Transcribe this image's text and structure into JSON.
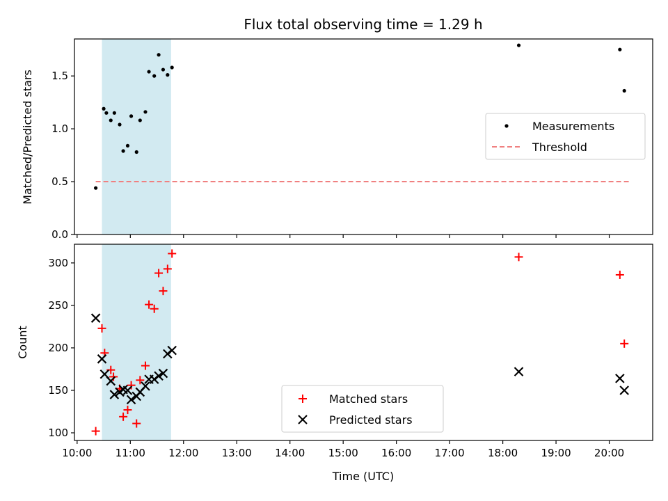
{
  "chart_data": [
    {
      "type": "scatter",
      "title": "Flux total observing time = 1.29 h",
      "xlabel": "",
      "ylabel": "Matched/Predicted stars",
      "x_axis": "time",
      "ylim": [
        0,
        1.85
      ],
      "yticks": [
        "0.0",
        "0.5",
        "1.0",
        "1.5"
      ],
      "shaded_span": {
        "start": "10:28",
        "end": "11:46",
        "color": "#add8e6"
      },
      "legend": {
        "position": "center-right",
        "entries": [
          "Measurements",
          "Threshold"
        ]
      },
      "series": [
        {
          "name": "Measurements",
          "marker": "dot",
          "color": "#000000",
          "points": [
            [
              "10:21",
              0.44
            ],
            [
              "10:30",
              1.19
            ],
            [
              "10:33",
              1.15
            ],
            [
              "10:38",
              1.08
            ],
            [
              "10:42",
              1.15
            ],
            [
              "10:48",
              1.04
            ],
            [
              "10:52",
              0.79
            ],
            [
              "10:57",
              0.84
            ],
            [
              "11:01",
              1.12
            ],
            [
              "11:07",
              0.78
            ],
            [
              "11:11",
              1.08
            ],
            [
              "11:17",
              1.16
            ],
            [
              "11:21",
              1.54
            ],
            [
              "11:27",
              1.5
            ],
            [
              "11:32",
              1.7
            ],
            [
              "11:37",
              1.56
            ],
            [
              "11:42",
              1.51
            ],
            [
              "11:47",
              1.58
            ],
            [
              "18:18",
              1.79
            ],
            [
              "20:12",
              1.75
            ],
            [
              "20:17",
              1.36
            ]
          ]
        },
        {
          "name": "Threshold",
          "style": "dashed",
          "color": "#f08080",
          "points": [
            [
              "10:21",
              0.5
            ],
            [
              "20:22",
              0.5
            ]
          ]
        }
      ]
    },
    {
      "type": "scatter",
      "title": "",
      "xlabel": "Time (UTC)",
      "ylabel": "Count",
      "x_axis": "time",
      "xlim": [
        "09:57",
        "20:49"
      ],
      "xticks": [
        "10:00",
        "11:00",
        "12:00",
        "13:00",
        "14:00",
        "15:00",
        "16:00",
        "17:00",
        "18:00",
        "19:00",
        "20:00"
      ],
      "ylim": [
        91,
        322
      ],
      "yticks": [
        "100",
        "150",
        "200",
        "250",
        "300"
      ],
      "shaded_span": {
        "start": "10:28",
        "end": "11:46",
        "color": "#add8e6"
      },
      "legend": {
        "position": "bottom-center",
        "entries": [
          "Matched stars",
          "Predicted stars"
        ]
      },
      "series": [
        {
          "name": "Matched stars",
          "marker": "plus",
          "color": "#ff0000",
          "points": [
            [
              "10:21",
              102
            ],
            [
              "10:28",
              223
            ],
            [
              "10:31",
              194
            ],
            [
              "10:38",
              174
            ],
            [
              "10:41",
              166
            ],
            [
              "10:48",
              152
            ],
            [
              "10:52",
              119
            ],
            [
              "10:57",
              127
            ],
            [
              "11:01",
              156
            ],
            [
              "11:07",
              111
            ],
            [
              "11:11",
              162
            ],
            [
              "11:17",
              179
            ],
            [
              "11:21",
              251
            ],
            [
              "11:27",
              246
            ],
            [
              "11:32",
              288
            ],
            [
              "11:37",
              267
            ],
            [
              "11:42",
              293
            ],
            [
              "11:47",
              311
            ],
            [
              "18:18",
              307
            ],
            [
              "20:12",
              286
            ],
            [
              "20:17",
              205
            ]
          ]
        },
        {
          "name": "Predicted stars",
          "marker": "x",
          "color": "#000000",
          "points": [
            [
              "10:21",
              235
            ],
            [
              "10:28",
              187
            ],
            [
              "10:31",
              169
            ],
            [
              "10:38",
              161
            ],
            [
              "10:42",
              145
            ],
            [
              "10:48",
              148
            ],
            [
              "10:52",
              151
            ],
            [
              "10:57",
              150
            ],
            [
              "11:01",
              139
            ],
            [
              "11:07",
              143
            ],
            [
              "11:11",
              148
            ],
            [
              "11:17",
              155
            ],
            [
              "11:21",
              163
            ],
            [
              "11:27",
              163
            ],
            [
              "11:32",
              167
            ],
            [
              "11:37",
              170
            ],
            [
              "11:42",
              193
            ],
            [
              "11:47",
              197
            ],
            [
              "18:18",
              172
            ],
            [
              "20:12",
              164
            ],
            [
              "20:17",
              150
            ]
          ]
        }
      ]
    }
  ]
}
